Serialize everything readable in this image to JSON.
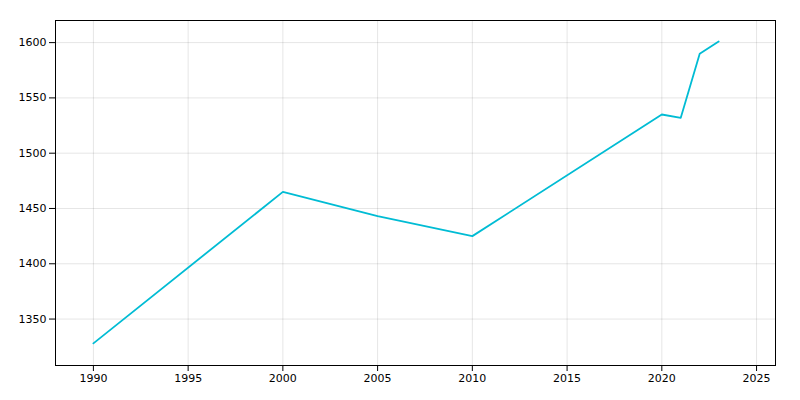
{
  "chart_data": {
    "type": "line",
    "x": [
      1990,
      2000,
      2005,
      2010,
      2020,
      2021,
      2022,
      2023
    ],
    "values": [
      1328,
      1465,
      1443,
      1425,
      1535,
      1532,
      1590,
      1601
    ],
    "color": "#00bcd4",
    "xlim": [
      1988,
      2026
    ],
    "ylim": [
      1308,
      1620
    ],
    "xticks": [
      1990,
      1995,
      2000,
      2005,
      2010,
      2015,
      2020,
      2025
    ],
    "yticks": [
      1350,
      1400,
      1450,
      1500,
      1550,
      1600
    ],
    "grid": true
  }
}
